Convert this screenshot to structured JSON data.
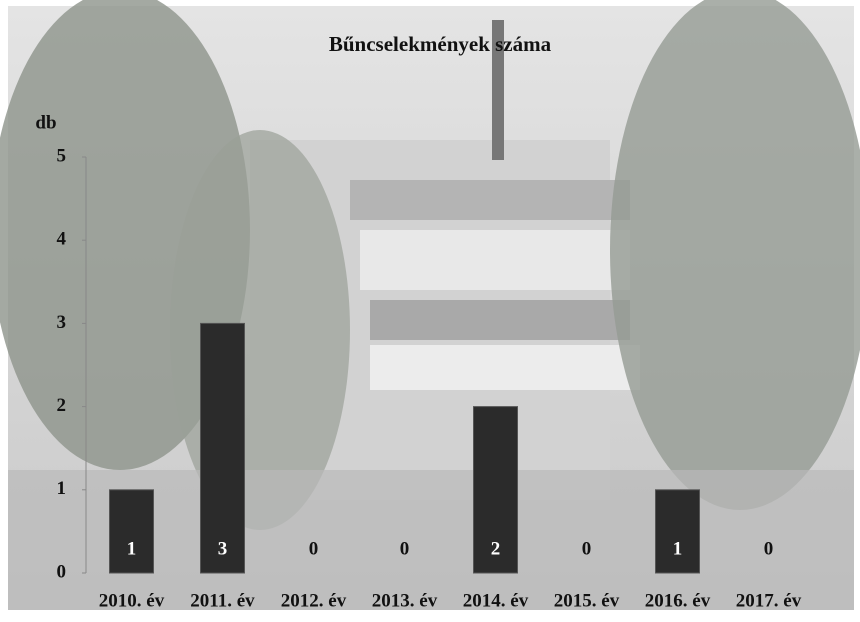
{
  "chart_data": {
    "type": "bar",
    "title": "Bűncselekmények száma",
    "y_label": "db",
    "categories": [
      "2010. év",
      "2011. év",
      "2012. év",
      "2013. év",
      "2014. év",
      "2015. év",
      "2016. év",
      "2017. év"
    ],
    "values": [
      1,
      3,
      0,
      0,
      2,
      0,
      1,
      0
    ],
    "color": "#2b2b2b",
    "ylim": [
      0,
      5
    ],
    "yticks": [
      0,
      1,
      2,
      3,
      4,
      5
    ],
    "grid": false
  }
}
